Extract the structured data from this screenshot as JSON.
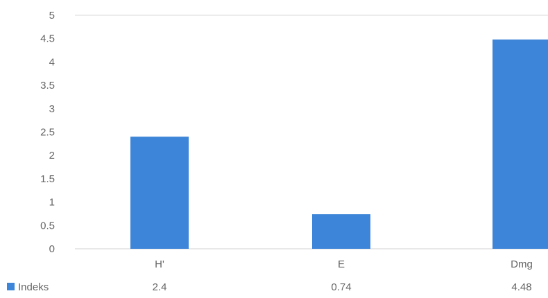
{
  "chart_data": {
    "type": "bar",
    "categories": [
      "H'",
      "E",
      "Dmg"
    ],
    "series": [
      {
        "name": "Indeks",
        "values": [
          2.4,
          0.74,
          4.48
        ],
        "color": "#3d85d8"
      }
    ],
    "yticks": [
      "0",
      "0.5",
      "1",
      "1.5",
      "2",
      "2.5",
      "3",
      "3.5",
      "4",
      "4.5",
      "5"
    ],
    "ylim": [
      0,
      5
    ],
    "grid": false,
    "legend": "data-table-left",
    "data_table": {
      "legend_label": "Indeks",
      "values": [
        "2.4",
        "0.74",
        "4.48"
      ]
    }
  }
}
